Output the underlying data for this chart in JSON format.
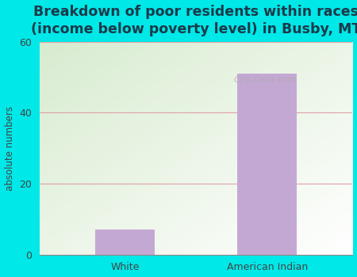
{
  "categories": [
    "White",
    "American Indian"
  ],
  "values": [
    7,
    51
  ],
  "bar_color": "#c4a8d4",
  "title": "Breakdown of poor residents within races\n(income below poverty level) in Busby, MT",
  "ylabel": "absolute numbers",
  "ylim": [
    0,
    60
  ],
  "yticks": [
    0,
    20,
    40,
    60
  ],
  "title_color": "#1a3a4a",
  "title_fontsize": 12.5,
  "ylabel_fontsize": 8.5,
  "tick_fontsize": 9,
  "bg_outer": "#00e8e8",
  "grid_color": "#e0a0a8",
  "bar_width": 0.42,
  "watermark": "City-Data.com"
}
